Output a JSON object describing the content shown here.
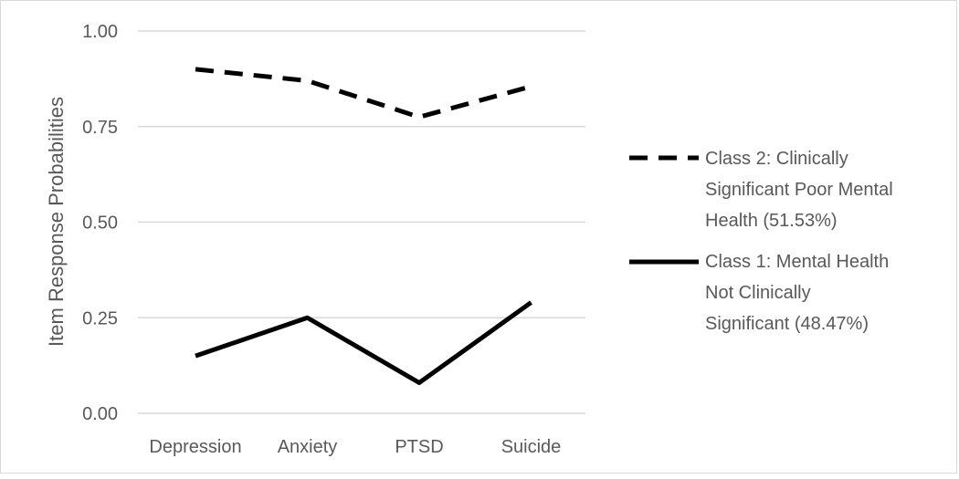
{
  "chart_data": {
    "type": "line",
    "title": "",
    "xlabel": "",
    "ylabel": "Item Response Probabilities",
    "categories": [
      "Depression",
      "Anxiety",
      "PTSD",
      "Suicide"
    ],
    "ylim": [
      0,
      1
    ],
    "yticks": [
      "0.00",
      "0.25",
      "0.50",
      "0.75",
      "1.00"
    ],
    "grid": true,
    "legend_position": "right",
    "series": [
      {
        "name": [
          "Class 2: Clinically",
          "Significant Poor Mental",
          "Health (51.53%)"
        ],
        "values": [
          0.9,
          0.87,
          0.775,
          0.855
        ],
        "line_style": "dashed",
        "color": "#000000"
      },
      {
        "name": [
          "Class 1: Mental Health",
          "Not Clinically",
          "Significant  (48.47%)"
        ],
        "values": [
          0.15,
          0.25,
          0.08,
          0.29
        ],
        "line_style": "solid",
        "color": "#000000"
      }
    ]
  }
}
